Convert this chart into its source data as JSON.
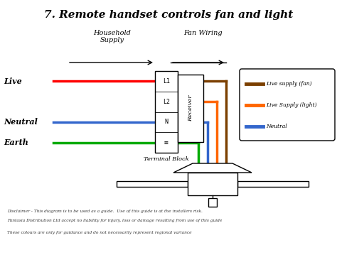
{
  "title": "7. Remote handset controls fan and light",
  "bg_color": "#ffffff",
  "label_live": "Live",
  "label_neutral": "Neutral",
  "label_earth": "Earth",
  "label_household": "Household\nSupply",
  "label_fan_wiring": "Fan Wiring",
  "label_terminal": "Terminal Block",
  "label_receiver": "Receiver",
  "label_l1": "L1",
  "label_l2": "L2",
  "label_n": "N",
  "label_earth_sym": "≡",
  "legend_items": [
    {
      "label": "Live supply (fan)",
      "color": "#7B3F00"
    },
    {
      "label": "Live Supply (light)",
      "color": "#FF6600"
    },
    {
      "label": "Neutral",
      "color": "#3366CC"
    }
  ],
  "wire_live_color": "#FF0000",
  "wire_neutral_color": "#3366CC",
  "wire_earth_color": "#00AA00",
  "wire_fan_color": "#7B3F00",
  "wire_light_color": "#FF6600",
  "wire_neutral_out_color": "#3366CC",
  "disclaimer1": "Disclaimer - This diagram is to be used as a guide.  Use of this guide is at the installers risk.",
  "disclaimer2": "Fantasia Distribution Ltd accept no liability for injury, loss or damage resulting from use of this guide",
  "disclaimer3": "These colours are only for guidance and do not necessarily represent regional variance"
}
